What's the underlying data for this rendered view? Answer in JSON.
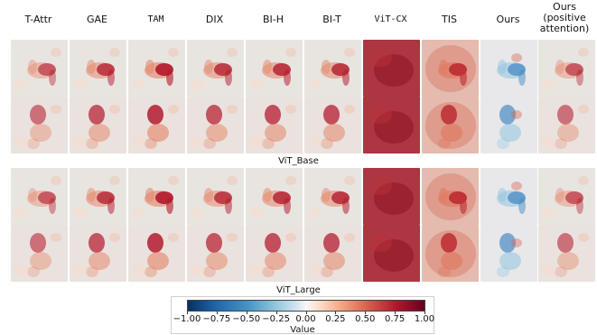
{
  "columns": [
    "T-Attr",
    "GAE",
    "TAM",
    "DIX",
    "BI-H",
    "BI-T",
    "ViT-CX",
    "TIS",
    "Ours",
    "Ours (positive attention)"
  ],
  "section_labels": [
    "ViT_Base",
    "ViT_Large"
  ],
  "colorbar": {
    "label": "Value",
    "ticks": [
      "−1.00",
      "−0.75",
      "−0.50",
      "−0.25",
      "0.00",
      "0.25",
      "0.50",
      "0.75",
      "1.00"
    ],
    "colors": [
      "#053061",
      "#2166ac",
      "#4393c3",
      "#92c5de",
      "#d1e5f0",
      "#f7f7f7",
      "#fddbc7",
      "#f4a582",
      "#d6604d",
      "#b2182b",
      "#67001f"
    ]
  }
}
